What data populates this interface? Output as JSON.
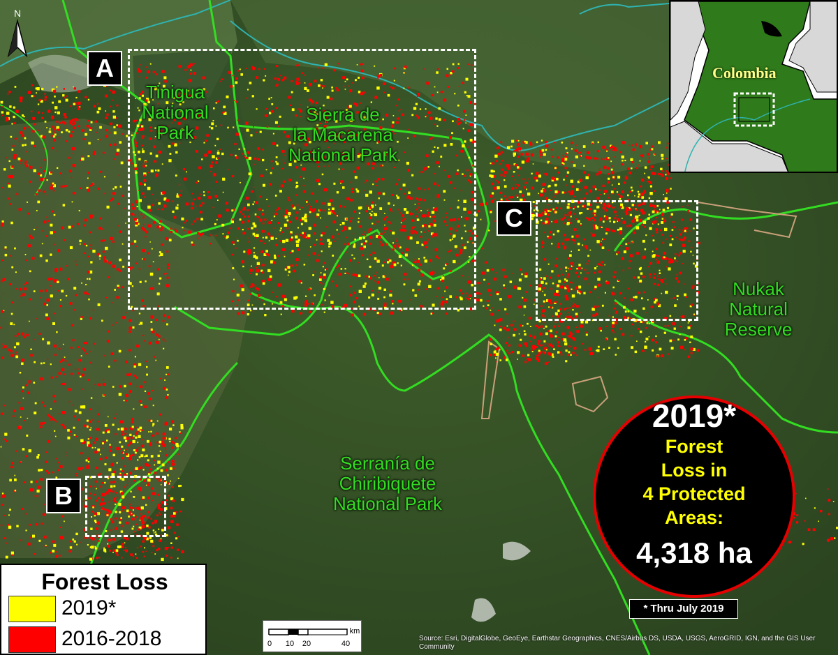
{
  "map": {
    "region_labels": {
      "tinigua": "Tinigua\nNational\nPark",
      "macarena": "Sierra de\nla Macarena\nNational Park",
      "chiribiquete": "Serranía de\nChiribiquete\nNational Park",
      "nukak": "Nukak\nNatural\nReserve"
    },
    "zoom_boxes": [
      "A",
      "B",
      "C"
    ],
    "colors": {
      "loss_2019": "#ffff00",
      "loss_2016_2018": "#ff0000",
      "park_border": "#33dd22",
      "river": "#2fb3b0"
    }
  },
  "inset": {
    "label": "Colombia"
  },
  "badge": {
    "year": "2019*",
    "description": "Forest\nLoss in\n4 Protected\nAreas:",
    "value": "4,318 ha"
  },
  "footnote": "* Thru July 2019",
  "legend": {
    "title": "Forest Loss",
    "items": [
      {
        "label": "2019*",
        "color": "#ffff00"
      },
      {
        "label": "2016-2018",
        "color": "#ff0000"
      }
    ]
  },
  "scale": {
    "ticks": [
      "0",
      "10",
      "20",
      "40"
    ],
    "unit": "km"
  },
  "north_label": "N",
  "attribution": "Source: Esri, DigitalGlobe, GeoEye, Earthstar Geographics, CNES/Airbus DS, USDA, USGS, AeroGRID, IGN, and the GIS User Community"
}
